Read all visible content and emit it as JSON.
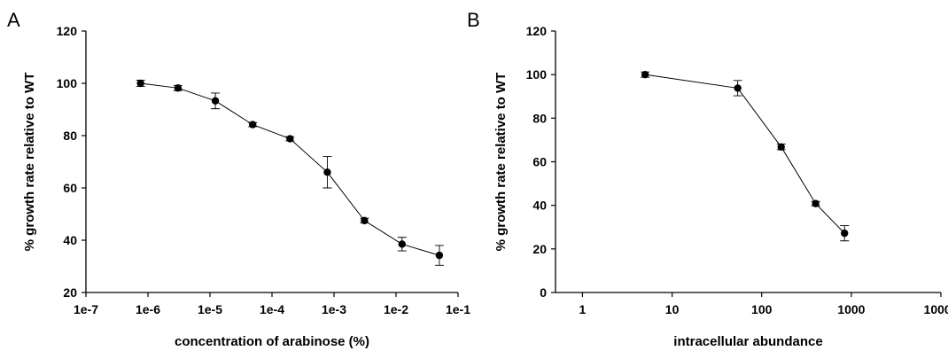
{
  "chart_data": [
    {
      "type": "line",
      "panel_label": "A",
      "xlabel": "concentration of arabinose (%)",
      "ylabel": "% growth rate relative to WT",
      "xscale": "log",
      "xlim": [
        1e-07,
        0.1
      ],
      "ylim": [
        20,
        120
      ],
      "xticks": [
        1e-07,
        1e-06,
        1e-05,
        0.0001,
        0.001,
        0.01,
        0.1
      ],
      "xtick_labels": [
        "1e-7",
        "1e-6",
        "1e-5",
        "1e-4",
        "1e-3",
        "1e-2",
        "1e-1"
      ],
      "yticks": [
        20,
        40,
        60,
        80,
        100,
        120
      ],
      "ytick_labels": [
        "20",
        "40",
        "60",
        "80",
        "100",
        "120"
      ],
      "grid": false,
      "series": [
        {
          "x": [
            7.6e-07,
            3.05e-06,
            1.22e-05,
            4.88e-05,
            0.000195,
            0.00078,
            0.0031,
            0.0125,
            0.05
          ],
          "y": [
            100,
            98.2,
            93.3,
            84.2,
            78.8,
            66,
            47.5,
            38.5,
            34.2
          ],
          "err": [
            1.2,
            1.0,
            3.0,
            0.8,
            0.8,
            6.0,
            0.9,
            2.6,
            3.8
          ]
        }
      ]
    },
    {
      "type": "line",
      "panel_label": "B",
      "xlabel": "intracellular abundance",
      "ylabel": "% growth rate relative to WT",
      "xscale": "log",
      "xlim": [
        0.5,
        10000
      ],
      "ylim": [
        0,
        120
      ],
      "xticks": [
        1,
        10,
        100,
        1000,
        10000
      ],
      "xtick_labels": [
        "1",
        "10",
        "100",
        "1000",
        "10000"
      ],
      "yticks": [
        0,
        20,
        40,
        60,
        80,
        100,
        120
      ],
      "ytick_labels": [
        "0",
        "20",
        "40",
        "60",
        "80",
        "100",
        "120"
      ],
      "grid": false,
      "series": [
        {
          "x": [
            5,
            54,
            165,
            400,
            840
          ],
          "y": [
            100,
            93.8,
            66.8,
            40.8,
            27.2
          ],
          "err": [
            1.2,
            3.5,
            1.3,
            1.0,
            3.5
          ]
        }
      ]
    }
  ]
}
